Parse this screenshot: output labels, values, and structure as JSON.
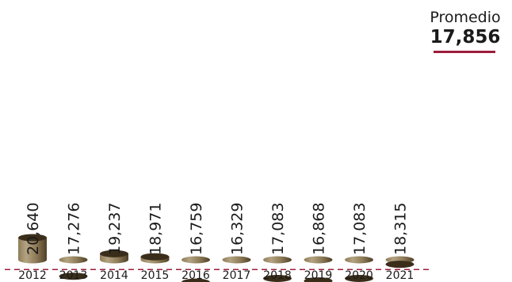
{
  "colors": {
    "bar_light": "#b3a382",
    "bar_mid": "#8f7c58",
    "bar_dark": "#4f4027",
    "bar_top": "#3a2e1b",
    "average_line": "#9c1d3a",
    "text": "#1a1a1a"
  },
  "average": {
    "title": "Promedio",
    "value_text": "17,856",
    "value": 17856
  },
  "chart_data": {
    "type": "bar",
    "categories": [
      "2012",
      "2013",
      "2014",
      "2015",
      "2016",
      "2017",
      "2018",
      "2019",
      "2020",
      "2021"
    ],
    "values": [
      20640,
      17276,
      19237,
      18971,
      16759,
      16329,
      17083,
      16868,
      17083,
      18315
    ],
    "value_labels": [
      "20,640",
      "17,276",
      "19,237",
      "18,971",
      "16,759",
      "16,329",
      "17,083",
      "16,868",
      "17,083",
      "18,315"
    ],
    "reference_line": {
      "label": "Promedio",
      "value": 17856,
      "style": "dashed"
    },
    "grid": false,
    "legend": "none"
  }
}
